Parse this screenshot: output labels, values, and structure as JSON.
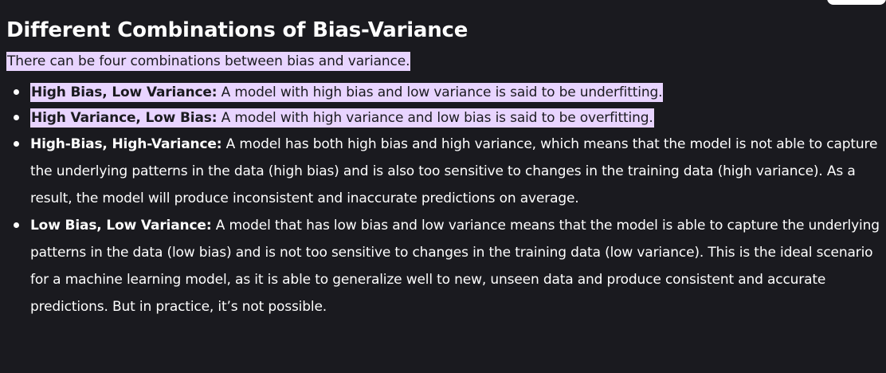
{
  "heading": "Different Combinations of Bias-Variance",
  "intro": "There can be four combinations between bias and variance.",
  "items": [
    {
      "term": "High Bias, Low Variance:",
      "text": " A model with high bias and low variance is said to be underfitting."
    },
    {
      "term": "High Variance, Low Bias:",
      "text": " A model with high variance and low bias is said to be overfitting."
    },
    {
      "term": "High-Bias, High-Variance:",
      "text": " A model has both high bias and high variance, which means that the model is not able to capture the underlying patterns in the data (high bias) and is also too sensitive to changes in the training data (high variance). As a result, the model will produce inconsistent and inaccurate predictions on average."
    },
    {
      "term": "Low Bias, Low Variance:",
      "text": " A model that has low bias and low variance means that the model is able to capture the underlying patterns in the data (low bias) and is not too sensitive to changes in the training data (low variance). This is the ideal scenario for a machine learning model, as it is able to generalize well to new, unseen data and produce consistent and accurate predictions. But in practice, it’s not possible."
    }
  ],
  "colors": {
    "background": "#1a1a1f",
    "text": "#ffffff",
    "highlight": "#e8d4ff"
  }
}
